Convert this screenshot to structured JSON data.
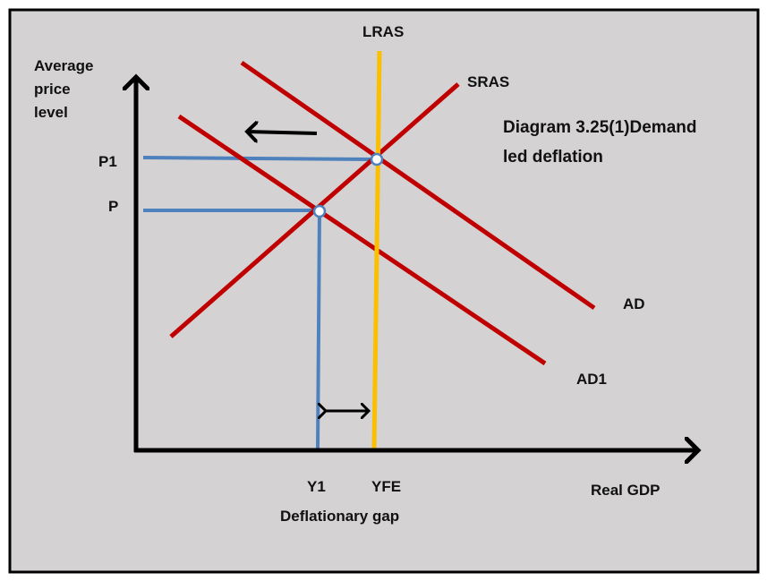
{
  "labels": {
    "lras": "LRAS",
    "sras": "SRAS",
    "ad": "AD",
    "ad1": "AD1",
    "y_axis": [
      "Average",
      "price",
      "level"
    ],
    "x_axis": "Real GDP",
    "p1": "P1",
    "p": "P",
    "y1": "Y1",
    "yfe": "YFE",
    "gap": "Deflationary gap",
    "title": [
      "Diagram 3.25(1)Demand",
      "led deflation"
    ]
  },
  "colors": {
    "background": "#d4d2d2",
    "curves": "#c00000",
    "lras": "#fbbf00",
    "guides": "#4f81bd"
  }
}
